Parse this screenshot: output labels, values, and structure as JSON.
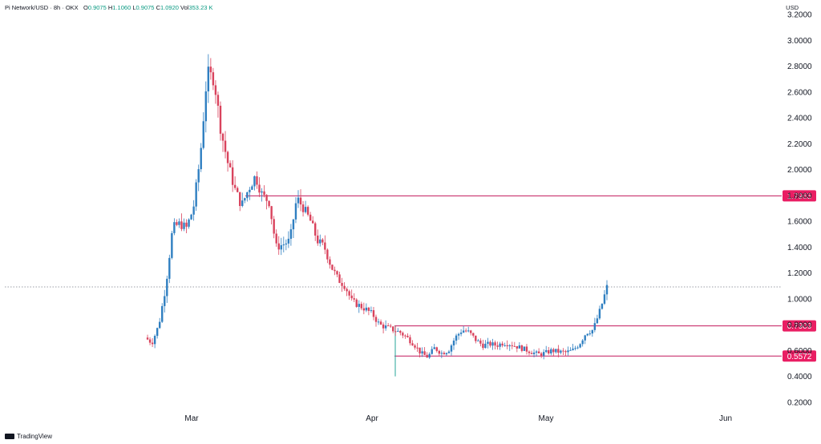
{
  "header": {
    "symbol": "Pi Network/USD · 8h · OKX",
    "open_label": "O",
    "open": "0.9075",
    "high_label": "H",
    "high": "1.1060",
    "low_label": "L",
    "low": "0.9075",
    "close_label": "C",
    "close": "1.0920",
    "vol_label": "Vol",
    "vol": "353.23 K"
  },
  "currency": "USD",
  "brand": "TradingView",
  "colors": {
    "up": "#2f7fc1",
    "down": "#d9435d",
    "level": "#c2185b",
    "accent": "#e91e63"
  },
  "chart_data": {
    "type": "candlestick",
    "y_ticks": [
      "0.2000",
      "0.4000",
      "0.6000",
      "0.8000",
      "1.0000",
      "1.2000",
      "1.4000",
      "1.6000",
      "1.8000",
      "2.0000",
      "2.2000",
      "2.4000",
      "2.6000",
      "2.8000",
      "3.0000",
      "3.2000"
    ],
    "x_ticks": [
      "Mar",
      "Apr",
      "May",
      "Jun"
    ],
    "ylim": [
      0.1,
      3.2
    ],
    "current_price": 1.092,
    "levels": [
      {
        "value": 1.7965,
        "label": "1.7965"
      },
      {
        "value": 0.7909,
        "label": "0.7909"
      },
      {
        "value": 0.5572,
        "label": "0.5572"
      }
    ],
    "price_path": [
      [
        0,
        0.7
      ],
      [
        1,
        0.66
      ],
      [
        2,
        0.8
      ],
      [
        3,
        1.1
      ],
      [
        4,
        1.55
      ],
      [
        5,
        1.58
      ],
      [
        6,
        1.55
      ],
      [
        7,
        1.7
      ],
      [
        8,
        2.1
      ],
      [
        9,
        2.75
      ],
      [
        10,
        2.7
      ],
      [
        11,
        2.3
      ],
      [
        12,
        2.05
      ],
      [
        13,
        1.85
      ],
      [
        14,
        1.72
      ],
      [
        15,
        1.85
      ],
      [
        16,
        1.95
      ],
      [
        17,
        1.8
      ],
      [
        18,
        1.75
      ],
      [
        19,
        1.4
      ],
      [
        20,
        1.42
      ],
      [
        21,
        1.45
      ],
      [
        22,
        1.78
      ],
      [
        23,
        1.7
      ],
      [
        24,
        1.6
      ],
      [
        25,
        1.45
      ],
      [
        26,
        1.4
      ],
      [
        27,
        1.25
      ],
      [
        28,
        1.15
      ],
      [
        29,
        1.1
      ],
      [
        30,
        0.98
      ],
      [
        31,
        0.95
      ],
      [
        32,
        0.92
      ],
      [
        33,
        0.88
      ],
      [
        34,
        0.8
      ],
      [
        35,
        0.78
      ],
      [
        36,
        0.76
      ],
      [
        37,
        0.74
      ],
      [
        38,
        0.7
      ],
      [
        39,
        0.65
      ],
      [
        40,
        0.58
      ],
      [
        41,
        0.55
      ],
      [
        42,
        0.62
      ],
      [
        43,
        0.58
      ],
      [
        44,
        0.6
      ],
      [
        45,
        0.7
      ],
      [
        46,
        0.76
      ],
      [
        47,
        0.74
      ],
      [
        48,
        0.68
      ],
      [
        49,
        0.64
      ],
      [
        50,
        0.65
      ],
      [
        51,
        0.64
      ],
      [
        52,
        0.66
      ],
      [
        53,
        0.65
      ],
      [
        54,
        0.63
      ],
      [
        55,
        0.61
      ],
      [
        56,
        0.59
      ],
      [
        57,
        0.57
      ],
      [
        58,
        0.58
      ],
      [
        59,
        0.6
      ],
      [
        60,
        0.59
      ],
      [
        61,
        0.585
      ],
      [
        62,
        0.6
      ],
      [
        63,
        0.65
      ],
      [
        64,
        0.74
      ],
      [
        65,
        0.76
      ],
      [
        66,
        0.91
      ],
      [
        67,
        1.09
      ]
    ]
  }
}
